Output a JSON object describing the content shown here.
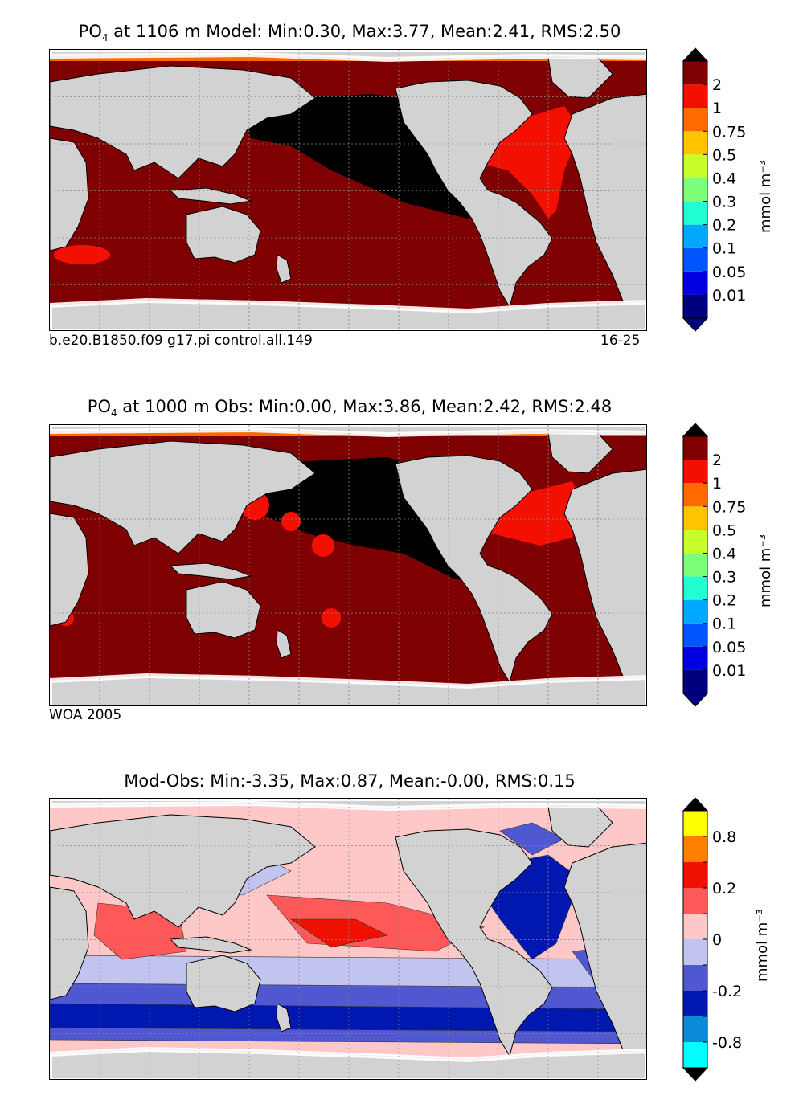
{
  "panels": [
    {
      "title_var": "PO",
      "title_sub": "4",
      "title_rest": " at 1106 m Model: Min:0.30, Max:3.77, Mean:2.41, RMS:2.50",
      "note_left": "b.e20.B1850.f09 g17.pi control.all.149",
      "note_right": "16-25",
      "colorbar": {
        "ticks": [
          "0.01",
          "0.05",
          "0.1",
          "0.2",
          "0.3",
          "0.4",
          "0.5",
          "0.75",
          "1",
          "2"
        ],
        "colors": [
          "#00007f",
          "#0000e0",
          "#0055ff",
          "#00a8ff",
          "#22ffd4",
          "#7cff7a",
          "#c8ff2b",
          "#ffc400",
          "#ff6a00",
          "#f41000",
          "#7f0000"
        ],
        "extend_low": "#00007f",
        "extend_high": "#000000",
        "unit": "mmol m⁻³"
      }
    },
    {
      "title_var": "PO",
      "title_sub": "4",
      "title_rest": " at 1000 m Obs: Min:0.00, Max:3.86, Mean:2.42, RMS:2.48",
      "note_left": "WOA 2005",
      "note_right": "",
      "colorbar": {
        "ticks": [
          "0.01",
          "0.05",
          "0.1",
          "0.2",
          "0.3",
          "0.4",
          "0.5",
          "0.75",
          "1",
          "2"
        ],
        "colors": [
          "#00007f",
          "#0000e0",
          "#0055ff",
          "#00a8ff",
          "#22ffd4",
          "#7cff7a",
          "#c8ff2b",
          "#ffc400",
          "#ff6a00",
          "#f41000",
          "#7f0000"
        ],
        "extend_low": "#00007f",
        "extend_high": "#000000",
        "unit": "mmol m⁻³"
      }
    },
    {
      "title_var": "Mod-Obs: Min:-3.35, Max:0.87, Mean:-0.00, RMS:0.15",
      "title_sub": "",
      "title_rest": "",
      "note_left": "",
      "note_right": "",
      "colorbar": {
        "ticks": [
          "-0.8",
          "",
          "-0.2",
          "",
          "0",
          "",
          "0.2",
          "",
          "0.8"
        ],
        "colors": [
          "#00ffff",
          "#0a8ad8",
          "#0018b0",
          "#4f58d0",
          "#c0c4ee",
          "#ffc8c8",
          "#ff5858",
          "#f01000",
          "#ff7f00",
          "#ffff00"
        ],
        "extend_low": "#000000",
        "extend_high": "#000000",
        "unit": "mmol m⁻³"
      }
    }
  ],
  "chart_data": {
    "type": "heatmap",
    "panel_count": 3,
    "colors": {
      "land": "#d2d2d2",
      "no_data": "#ffffff",
      "coast": "#000000",
      "grid": "#888888"
    }
  }
}
